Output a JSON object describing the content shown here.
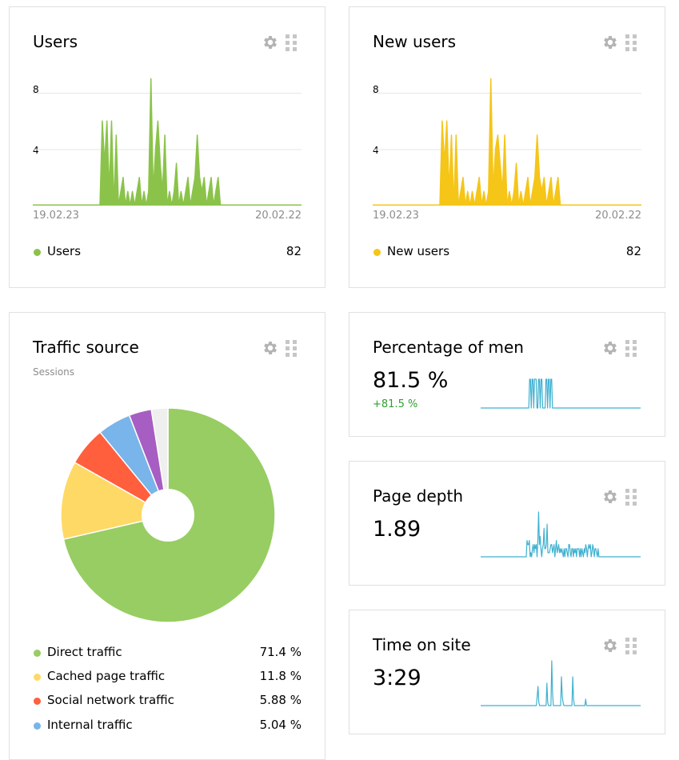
{
  "cards": {
    "users": {
      "title": "Users",
      "y_ticks": [
        "8",
        "4"
      ],
      "date_start": "19.02.23",
      "date_end": "20.02.22",
      "legend_label": "Users",
      "legend_value": "82",
      "color": "#8bc34a"
    },
    "new_users": {
      "title": "New users",
      "y_ticks": [
        "8",
        "4"
      ],
      "date_start": "19.02.23",
      "date_end": "20.02.22",
      "legend_label": "New users",
      "legend_value": "82",
      "color": "#f5c518"
    },
    "traffic": {
      "title": "Traffic source",
      "subtitle": "Sessions",
      "legend": [
        {
          "label": "Direct traffic",
          "value": "71.4 %",
          "color": "#97cd63"
        },
        {
          "label": "Cached page traffic",
          "value": "11.8 %",
          "color": "#ffd966"
        },
        {
          "label": "Social network traffic",
          "value": "5.88 %",
          "color": "#ff5f3d"
        },
        {
          "label": "Internal traffic",
          "value": "5.04 %",
          "color": "#79b4ea"
        }
      ]
    },
    "men": {
      "title": "Percentage of men",
      "value": "81.5 %",
      "delta": "+81.5 %"
    },
    "depth": {
      "title": "Page depth",
      "value": "1.89"
    },
    "time": {
      "title": "Time on site",
      "value": "3:29"
    }
  },
  "chart_data": [
    {
      "type": "area",
      "series": [
        {
          "name": "Users",
          "values": [
            0,
            0,
            0,
            0,
            0,
            0,
            0,
            0,
            0,
            0,
            0,
            0,
            0,
            0,
            0,
            0,
            0,
            0,
            0,
            0,
            0,
            0,
            0,
            0,
            0,
            0,
            0,
            0,
            0,
            0,
            6,
            3,
            6,
            1,
            6,
            0,
            5,
            0,
            1,
            2,
            0,
            1,
            0,
            1,
            0,
            1,
            2,
            0,
            1,
            0,
            1,
            9,
            1,
            4,
            6,
            3,
            1,
            5,
            0,
            1,
            0,
            1,
            3,
            0,
            1,
            0,
            1,
            2,
            0,
            1,
            2,
            5,
            2,
            1,
            2,
            0,
            1,
            2,
            0,
            1,
            2,
            0,
            0,
            0,
            0,
            0,
            0,
            0,
            0,
            0,
            0,
            0,
            0,
            0,
            0,
            0,
            0,
            0,
            0,
            0,
            0,
            0,
            0,
            0,
            0,
            0,
            0,
            0,
            0,
            0,
            0,
            0,
            0,
            0,
            0,
            0,
            0
          ]
        }
      ],
      "ylim": [
        0,
        8
      ],
      "x_start": "19.02.23",
      "x_end": "20.02.22",
      "color": "#8bc34a"
    },
    {
      "type": "area",
      "series": [
        {
          "name": "New users",
          "values": [
            0,
            0,
            0,
            0,
            0,
            0,
            0,
            0,
            0,
            0,
            0,
            0,
            0,
            0,
            0,
            0,
            0,
            0,
            0,
            0,
            0,
            0,
            0,
            0,
            0,
            0,
            0,
            0,
            0,
            0,
            6,
            3,
            6,
            1,
            5,
            0,
            5,
            0,
            1,
            2,
            0,
            1,
            0,
            1,
            0,
            1,
            2,
            0,
            1,
            0,
            1,
            9,
            1,
            4,
            5,
            3,
            1,
            5,
            0,
            1,
            0,
            1,
            3,
            0,
            1,
            0,
            1,
            2,
            0,
            1,
            2,
            5,
            2,
            1,
            2,
            0,
            1,
            2,
            0,
            1,
            2,
            0,
            0,
            0,
            0,
            0,
            0,
            0,
            0,
            0,
            0,
            0,
            0,
            0,
            0,
            0,
            0,
            0,
            0,
            0,
            0,
            0,
            0,
            0,
            0,
            0,
            0,
            0,
            0,
            0,
            0,
            0,
            0,
            0,
            0,
            0,
            0
          ]
        }
      ],
      "ylim": [
        0,
        8
      ],
      "x_start": "19.02.23",
      "x_end": "20.02.22",
      "color": "#f5c518"
    },
    {
      "type": "pie",
      "title": "Traffic source",
      "categories": [
        "Direct traffic",
        "Cached page traffic",
        "Social network traffic",
        "Internal traffic",
        "Other (purple)",
        "Other (grey)"
      ],
      "values": [
        71.4,
        11.8,
        5.88,
        5.04,
        3.4,
        2.48
      ],
      "colors": [
        "#97cd63",
        "#ffd966",
        "#ff5f3d",
        "#79b4ea",
        "#a75ec2",
        "#efefef"
      ]
    },
    {
      "type": "line",
      "series": [
        {
          "name": "Percentage of men",
          "values": [
            0,
            0,
            0,
            0,
            0,
            0,
            0,
            0,
            0,
            0,
            0,
            0,
            0,
            0,
            0,
            0,
            0,
            0,
            0,
            0,
            0,
            0,
            0,
            0,
            0,
            0,
            0,
            0,
            0,
            0,
            0,
            0,
            0,
            0,
            0,
            0,
            0,
            0,
            0,
            0,
            0,
            0,
            0,
            0,
            0,
            0,
            0,
            0,
            0,
            0,
            0,
            0,
            0,
            0,
            0,
            0,
            0,
            0,
            0,
            0,
            1,
            1,
            0,
            1,
            1,
            0,
            1,
            1,
            1,
            0,
            0,
            1,
            1,
            0,
            1,
            1,
            0,
            0,
            0,
            0,
            1,
            1,
            0,
            1,
            1,
            0,
            1,
            1,
            0,
            0,
            0,
            0,
            0,
            0,
            0,
            0,
            0,
            0,
            0,
            0,
            0,
            0,
            0,
            0,
            0,
            0,
            0,
            0,
            0,
            0,
            0,
            0,
            0,
            0,
            0,
            0,
            0,
            0,
            0,
            0,
            0,
            0,
            0,
            0,
            0,
            0,
            0,
            0,
            0,
            0,
            0,
            0,
            0,
            0,
            0,
            0,
            0,
            0,
            0,
            0,
            0,
            0,
            0,
            0,
            0,
            0,
            0,
            0,
            0,
            0,
            0,
            0,
            0,
            0,
            0,
            0,
            0,
            0,
            0,
            0,
            0,
            0,
            0,
            0,
            0,
            0,
            0,
            0,
            0,
            0,
            0,
            0,
            0,
            0,
            0,
            0,
            0,
            0,
            0,
            0,
            0,
            0,
            0,
            0,
            0,
            0,
            0,
            0,
            0,
            0,
            0,
            0,
            0,
            0,
            0,
            0,
            0
          ]
        }
      ],
      "color": "#3fb1d0"
    },
    {
      "type": "line",
      "series": [
        {
          "name": "Page depth",
          "values": [
            0,
            0,
            0,
            0,
            0,
            0,
            0,
            0,
            0,
            0,
            0,
            0,
            0,
            0,
            0,
            0,
            0,
            0,
            0,
            0,
            0,
            0,
            0,
            0,
            0,
            0,
            0,
            0,
            0,
            0,
            0,
            0,
            0,
            0,
            0,
            0,
            0,
            0,
            0,
            0,
            0,
            0,
            0,
            0,
            0,
            0,
            0,
            0,
            0,
            0,
            0,
            0,
            0,
            0,
            0,
            0,
            0,
            0,
            0,
            0,
            4,
            3,
            3,
            4,
            0,
            1,
            0,
            2,
            3,
            1,
            3,
            2,
            3,
            0,
            4,
            11,
            3,
            5,
            2,
            0,
            2,
            3,
            7,
            2,
            2,
            3,
            8,
            1,
            1,
            1,
            2,
            3,
            3,
            1,
            2,
            3,
            0,
            2,
            4,
            1,
            2,
            3,
            1,
            2,
            1,
            2,
            1,
            0,
            2,
            0,
            2,
            2,
            1,
            0,
            3,
            3,
            1,
            0,
            2,
            2,
            0,
            2,
            1,
            2,
            0,
            2,
            2,
            2,
            0,
            2,
            0,
            2,
            1,
            0,
            2,
            1,
            3,
            2,
            0,
            2,
            3,
            2,
            3,
            0,
            1,
            3,
            2,
            0,
            2,
            2,
            1,
            0,
            2,
            0,
            0,
            0,
            0,
            0,
            0,
            0,
            0,
            0,
            0,
            0,
            0,
            0,
            0,
            0,
            0,
            0,
            0,
            0,
            0,
            0,
            0,
            0,
            0,
            0,
            0,
            0,
            0,
            0,
            0,
            0,
            0,
            0,
            0,
            0,
            0,
            0,
            0,
            0,
            0,
            0,
            0,
            0,
            0,
            0,
            0,
            0,
            0,
            0,
            0,
            0,
            0,
            0,
            0,
            0
          ]
        }
      ],
      "color": "#3fb1d0"
    },
    {
      "type": "line",
      "series": [
        {
          "name": "Time on site",
          "values": [
            0,
            0,
            0,
            0,
            0,
            0,
            0,
            0,
            0,
            0,
            0,
            0,
            0,
            0,
            0,
            0,
            0,
            0,
            0,
            0,
            0,
            0,
            0,
            0,
            0,
            0,
            0,
            0,
            0,
            0,
            0,
            0,
            0,
            0,
            0,
            0,
            0,
            0,
            0,
            0,
            0,
            0,
            0,
            0,
            0,
            0,
            0,
            0,
            0,
            0,
            0,
            0,
            0,
            0,
            0,
            0,
            0,
            0,
            0,
            0,
            0,
            0,
            0,
            0,
            0,
            0,
            0,
            0,
            0,
            0,
            3,
            6,
            1,
            0,
            0,
            0,
            0,
            0,
            0,
            0,
            0,
            0,
            7,
            1,
            0,
            0,
            0,
            0,
            14,
            4,
            0,
            0,
            0,
            0,
            0,
            0,
            0,
            0,
            0,
            0,
            9,
            3,
            1,
            0,
            0,
            0,
            0,
            0,
            0,
            0,
            0,
            0,
            0,
            0,
            9,
            2,
            0,
            0,
            0,
            0,
            0,
            0,
            0,
            0,
            0,
            0,
            0,
            0,
            0,
            0,
            2,
            0,
            0,
            0,
            0,
            0,
            0,
            0,
            0,
            0,
            0,
            0,
            0,
            0,
            0,
            0,
            0,
            0,
            0,
            0,
            0,
            0,
            0,
            0,
            0,
            0,
            0,
            0,
            0,
            0,
            0,
            0,
            0,
            0,
            0,
            0,
            0,
            0,
            0,
            0,
            0,
            0,
            0,
            0,
            0,
            0,
            0,
            0,
            0,
            0,
            0,
            0,
            0,
            0,
            0,
            0,
            0,
            0,
            0,
            0,
            0,
            0,
            0,
            0,
            0,
            0,
            0,
            0,
            0
          ]
        }
      ],
      "color": "#3fb1d0"
    }
  ]
}
